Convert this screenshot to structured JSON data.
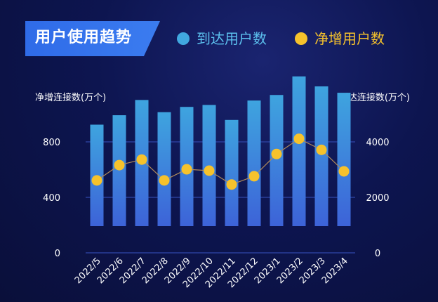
{
  "header": {
    "title": "用户使用趋势"
  },
  "legend": {
    "reach_label": "到达用户数",
    "net_label": "净增用户数"
  },
  "colors": {
    "bar_top": "#3ea4df",
    "bar_bottom": "#3d63d8",
    "dot": "#f6c22c",
    "line": "#b08a5a",
    "grid": "#2a3e9a"
  },
  "chart_data": {
    "type": "bar",
    "title": "用户使用趋势",
    "categories": [
      "2022/5",
      "2022/6",
      "2022/7",
      "2022/8",
      "2022/9",
      "2022/10",
      "2022/11",
      "2022/12",
      "2023/1",
      "2023/2",
      "2023/3",
      "2023/4"
    ],
    "ylabel_left": "净增连接数(万个)",
    "ylabel_right": "到达连接数(万个)",
    "y_left_ticks": [
      "0",
      "400",
      "800"
    ],
    "y_right_ticks": [
      "0",
      "2000",
      "4000"
    ],
    "ylim_left": [
      0,
      800
    ],
    "ylim_right": [
      0,
      4000
    ],
    "grid": true,
    "legend_position": "top",
    "series": [
      {
        "name": "到达用户数",
        "type": "bar",
        "axis": "right",
        "values": [
          3000,
          3340,
          3890,
          3450,
          3640,
          3710,
          3170,
          3870,
          4070,
          4740,
          4380,
          4150
        ]
      },
      {
        "name": "净增用户数",
        "type": "line",
        "axis": "left",
        "values": [
          330,
          440,
          480,
          330,
          410,
          400,
          300,
          360,
          520,
          630,
          550,
          395
        ]
      }
    ]
  }
}
